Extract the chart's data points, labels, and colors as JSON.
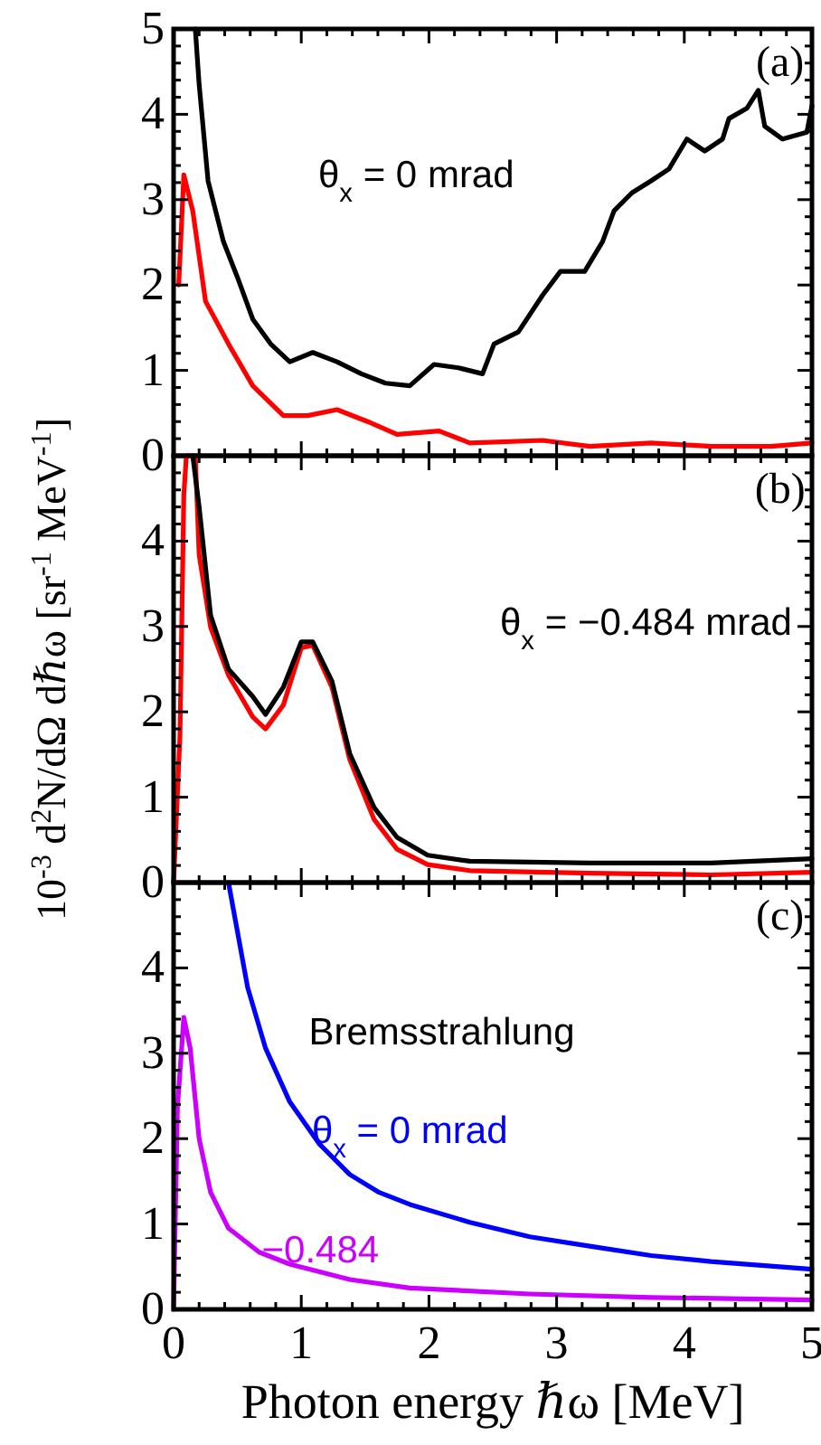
{
  "chart_data": [
    {
      "type": "line",
      "annotations": [
        "(a)",
        "θ$_{x}$ = 0 mrad"
      ],
      "tick_labels": "y",
      "xlim": [
        0,
        5
      ],
      "ylim": [
        0,
        5
      ],
      "xticks": [
        0,
        {
          "value": 0.2,
          "label": null
        },
        {
          "value": 0.4,
          "label": null
        },
        {
          "value": 0.6,
          "label": null
        },
        {
          "value": 0.8,
          "label": null
        },
        1,
        {
          "value": 1.2,
          "label": null
        },
        {
          "value": 1.4,
          "label": null
        },
        {
          "value": 1.6,
          "label": null
        },
        {
          "value": 1.8,
          "label": null
        },
        2,
        {
          "value": 2.2,
          "label": null
        },
        {
          "value": 2.4,
          "label": null
        },
        {
          "value": 2.6,
          "label": null
        },
        {
          "value": 2.8,
          "label": null
        },
        3,
        {
          "value": 3.2,
          "label": null
        },
        {
          "value": 3.4,
          "label": null
        },
        {
          "value": 3.6,
          "label": null
        },
        {
          "value": 3.8,
          "label": null
        },
        4,
        {
          "value": 4.2,
          "label": null
        },
        {
          "value": 4.4,
          "label": null
        },
        {
          "value": 4.6,
          "label": null
        },
        {
          "value": 4.8,
          "label": null
        },
        5
      ],
      "yticks": [
        0,
        {
          "value": 0.2,
          "label": null
        },
        {
          "value": 0.4,
          "label": null
        },
        {
          "value": 0.6,
          "label": null
        },
        {
          "value": 0.8,
          "label": null
        },
        1,
        {
          "value": 1.2,
          "label": null
        },
        {
          "value": 1.4,
          "label": null
        },
        {
          "value": 1.6,
          "label": null
        },
        {
          "value": 1.8,
          "label": null
        },
        2,
        {
          "value": 2.2,
          "label": null
        },
        {
          "value": 2.4,
          "label": null
        },
        {
          "value": 2.6,
          "label": null
        },
        {
          "value": 2.8,
          "label": null
        },
        3,
        {
          "value": 3.2,
          "label": null
        },
        {
          "value": 3.4,
          "label": null
        },
        {
          "value": 3.6,
          "label": null
        },
        {
          "value": 3.8,
          "label": null
        },
        4,
        {
          "value": 4.2,
          "label": null
        },
        {
          "value": 4.4,
          "label": null
        },
        {
          "value": 4.6,
          "label": null
        },
        {
          "value": 4.8,
          "label": null
        },
        5
      ],
      "series": [
        {
          "color": "#000000",
          "x": [
            0.17,
            0.2,
            0.27,
            0.39,
            0.5,
            0.62,
            0.76,
            0.91,
            1.09,
            1.28,
            1.47,
            1.66,
            1.85,
            2.04,
            2.23,
            2.42,
            2.51,
            2.7,
            2.89,
            3.03,
            3.22,
            3.36,
            3.45,
            3.59,
            3.74,
            3.88,
            4.02,
            4.16,
            4.3,
            4.35,
            4.49,
            4.58,
            4.63,
            4.77,
            4.96,
            5
          ],
          "values": [
            5,
            4.35,
            3.22,
            2.51,
            2.09,
            1.6,
            1.31,
            1.1,
            1.21,
            1.1,
            0.96,
            0.85,
            0.82,
            1.07,
            1.03,
            0.96,
            1.31,
            1.45,
            1.88,
            2.16,
            2.16,
            2.51,
            2.87,
            3.08,
            3.22,
            3.36,
            3.71,
            3.57,
            3.71,
            3.95,
            4.07,
            4.28,
            3.86,
            3.71,
            3.79,
            4.1
          ]
        },
        {
          "color": "#ff0000",
          "x": [
            0.04,
            0.08,
            0.15,
            0.25,
            0.43,
            0.62,
            0.86,
            1.05,
            1.28,
            1.52,
            1.75,
            2.08,
            2.32,
            2.89,
            3.26,
            3.74,
            4.21,
            4.68,
            5
          ],
          "values": [
            2.0,
            3.29,
            2.87,
            1.81,
            1.31,
            0.82,
            0.47,
            0.47,
            0.54,
            0.4,
            0.25,
            0.29,
            0.15,
            0.18,
            0.11,
            0.15,
            0.11,
            0.11,
            0.15
          ]
        }
      ]
    },
    {
      "type": "line",
      "annotations": [
        "(b)",
        "θ$_{x}$ = −0.484 mrad"
      ],
      "ylabel": "10$^{-3}$ d$^{2}$N/dΩ dℏω [sr$^{-1}$ MeV$^{-1}$]",
      "tick_labels": "y",
      "xlim": [
        0,
        5
      ],
      "ylim": [
        0,
        5
      ],
      "xticks": [
        0,
        {
          "value": 0.2,
          "label": null
        },
        {
          "value": 0.4,
          "label": null
        },
        {
          "value": 0.6,
          "label": null
        },
        {
          "value": 0.8,
          "label": null
        },
        1,
        {
          "value": 1.2,
          "label": null
        },
        {
          "value": 1.4,
          "label": null
        },
        {
          "value": 1.6,
          "label": null
        },
        {
          "value": 1.8,
          "label": null
        },
        2,
        {
          "value": 2.2,
          "label": null
        },
        {
          "value": 2.4,
          "label": null
        },
        {
          "value": 2.6,
          "label": null
        },
        {
          "value": 2.8,
          "label": null
        },
        3,
        {
          "value": 3.2,
          "label": null
        },
        {
          "value": 3.4,
          "label": null
        },
        {
          "value": 3.6,
          "label": null
        },
        {
          "value": 3.8,
          "label": null
        },
        4,
        {
          "value": 4.2,
          "label": null
        },
        {
          "value": 4.4,
          "label": null
        },
        {
          "value": 4.6,
          "label": null
        },
        {
          "value": 4.8,
          "label": null
        },
        5
      ],
      "yticks": [
        0,
        {
          "value": 0.2,
          "label": null
        },
        {
          "value": 0.4,
          "label": null
        },
        {
          "value": 0.6,
          "label": null
        },
        {
          "value": 0.8,
          "label": null
        },
        1,
        {
          "value": 1.2,
          "label": null
        },
        {
          "value": 1.4,
          "label": null
        },
        {
          "value": 1.6,
          "label": null
        },
        {
          "value": 1.8,
          "label": null
        },
        2,
        {
          "value": 2.2,
          "label": null
        },
        {
          "value": 2.4,
          "label": null
        },
        {
          "value": 2.6,
          "label": null
        },
        {
          "value": 2.8,
          "label": null
        },
        3,
        {
          "value": 3.2,
          "label": null
        },
        {
          "value": 3.4,
          "label": null
        },
        {
          "value": 3.6,
          "label": null
        },
        {
          "value": 3.8,
          "label": null
        },
        4,
        {
          "value": 4.2,
          "label": null
        },
        {
          "value": 4.4,
          "label": null
        },
        {
          "value": 4.6,
          "label": null
        },
        {
          "value": 4.8,
          "label": null
        },
        {
          "value": 5,
          "label": null
        }
      ],
      "series": [
        {
          "color": "#ff0000",
          "x": [
            0,
            0.05,
            0.08,
            0.1,
            0.17,
            0.2,
            0.29,
            0.43,
            0.62,
            0.72,
            0.86,
            1.0,
            1.09,
            1.24,
            1.38,
            1.57,
            1.75,
            1.99,
            2.32,
            3.26,
            4.21,
            5
          ],
          "values": [
            0,
            1.73,
            4.54,
            5,
            5,
            3.84,
            2.99,
            2.43,
            1.94,
            1.8,
            2.08,
            2.75,
            2.78,
            2.29,
            1.44,
            0.74,
            0.39,
            0.21,
            0.14,
            0.11,
            0.09,
            0.12
          ]
        },
        {
          "color": "#000000",
          "x": [
            0.15,
            0.2,
            0.29,
            0.43,
            0.62,
            0.72,
            0.86,
            1.0,
            1.09,
            1.24,
            1.38,
            1.57,
            1.75,
            1.99,
            2.32,
            3.26,
            4.21,
            5
          ],
          "values": [
            5,
            4.4,
            3.13,
            2.5,
            2.18,
            1.97,
            2.29,
            2.82,
            2.82,
            2.36,
            1.51,
            0.88,
            0.53,
            0.32,
            0.25,
            0.23,
            0.23,
            0.28
          ]
        }
      ]
    },
    {
      "type": "line",
      "annotations": [
        "(c)",
        "Bremsstrahlung"
      ],
      "xlabel": "Photon energy ℏω [MeV]",
      "xlim": [
        0,
        5
      ],
      "ylim": [
        0,
        5
      ],
      "xticks": [
        0,
        {
          "value": 0.2,
          "label": null
        },
        {
          "value": 0.4,
          "label": null
        },
        {
          "value": 0.6,
          "label": null
        },
        {
          "value": 0.8,
          "label": null
        },
        1,
        {
          "value": 1.2,
          "label": null
        },
        {
          "value": 1.4,
          "label": null
        },
        {
          "value": 1.6,
          "label": null
        },
        {
          "value": 1.8,
          "label": null
        },
        2,
        {
          "value": 2.2,
          "label": null
        },
        {
          "value": 2.4,
          "label": null
        },
        {
          "value": 2.6,
          "label": null
        },
        {
          "value": 2.8,
          "label": null
        },
        3,
        {
          "value": 3.2,
          "label": null
        },
        {
          "value": 3.4,
          "label": null
        },
        {
          "value": 3.6,
          "label": null
        },
        {
          "value": 3.8,
          "label": null
        },
        4,
        {
          "value": 4.2,
          "label": null
        },
        {
          "value": 4.4,
          "label": null
        },
        {
          "value": 4.6,
          "label": null
        },
        {
          "value": 4.8,
          "label": null
        },
        5
      ],
      "yticks": [
        0,
        {
          "value": 0.2,
          "label": null
        },
        {
          "value": 0.4,
          "label": null
        },
        {
          "value": 0.6,
          "label": null
        },
        {
          "value": 0.8,
          "label": null
        },
        1,
        {
          "value": 1.2,
          "label": null
        },
        {
          "value": 1.4,
          "label": null
        },
        {
          "value": 1.6,
          "label": null
        },
        {
          "value": 1.8,
          "label": null
        },
        2,
        {
          "value": 2.2,
          "label": null
        },
        {
          "value": 2.4,
          "label": null
        },
        {
          "value": 2.6,
          "label": null
        },
        {
          "value": 2.8,
          "label": null
        },
        3,
        {
          "value": 3.2,
          "label": null
        },
        {
          "value": 3.4,
          "label": null
        },
        {
          "value": 3.6,
          "label": null
        },
        {
          "value": 3.8,
          "label": null
        },
        4,
        {
          "value": 4.2,
          "label": null
        },
        {
          "value": 4.4,
          "label": null
        },
        {
          "value": 4.6,
          "label": null
        },
        {
          "value": 4.8,
          "label": null
        },
        {
          "value": 5,
          "label": null
        }
      ],
      "series": [
        {
          "name": "θ$_{x}$ = 0 mrad",
          "color": "#0000ff",
          "x": [
            0.43,
            0.58,
            0.72,
            0.91,
            1.14,
            1.38,
            1.61,
            1.85,
            2.32,
            2.79,
            3.26,
            3.74,
            4.21,
            5
          ],
          "values": [
            5,
            3.77,
            3.06,
            2.43,
            1.94,
            1.58,
            1.37,
            1.23,
            1.02,
            0.85,
            0.74,
            0.63,
            0.56,
            0.47
          ]
        },
        {
          "name": "−0.484",
          "color": "#cc00ff",
          "x": [
            0,
            0.03,
            0.08,
            0.13,
            0.2,
            0.29,
            0.43,
            0.67,
            0.91,
            1.38,
            1.85,
            2.79,
            3.74,
            5
          ],
          "values": [
            0,
            2.36,
            3.42,
            3.06,
            2,
            1.37,
            0.95,
            0.67,
            0.53,
            0.35,
            0.25,
            0.18,
            0.14,
            0.11
          ]
        }
      ]
    }
  ]
}
